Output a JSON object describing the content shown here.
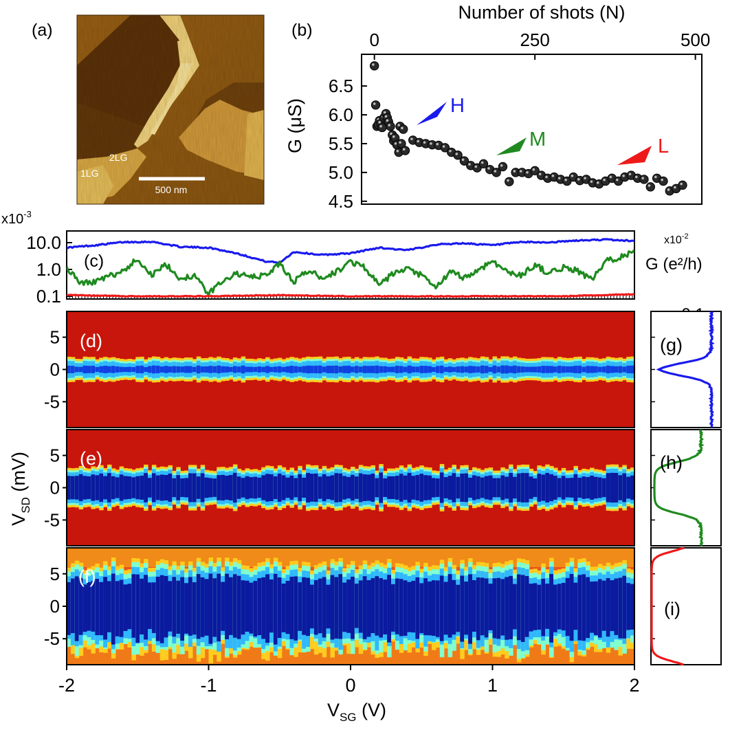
{
  "panel_labels": {
    "a": "(a)",
    "b": "(b)",
    "c": "(c)",
    "d": "(d)",
    "e": "(e)",
    "f": "(f)",
    "g": "(g)",
    "h": "(h)",
    "i": "(i)"
  },
  "afm_image": {
    "label_1lg": "1LG",
    "label_2lg": "2LG",
    "scalebar_label": "500 nm",
    "colors": {
      "dark": "#5a3006",
      "mid": "#a86a18",
      "bright": "#e8c058",
      "highlight": "#fbe59a"
    }
  },
  "colors": {
    "H": "#1a1aee",
    "M": "#1f8a1f",
    "L": "#ee1a1a",
    "points": "#2a2a2a"
  },
  "chart_data": [
    {
      "id": "b",
      "type": "scatter",
      "title": "",
      "xlabel": "Number of shots (N)",
      "ylabel": "G (μS)",
      "xlim": [
        -20,
        510
      ],
      "ylim": [
        4.45,
        7.05
      ],
      "xticks": [
        0,
        250,
        500
      ],
      "yticks": [
        4.5,
        5.0,
        5.5,
        6.0,
        6.5
      ],
      "ytick_labels": [
        "4.5",
        "5.0",
        "5.5",
        "6.0",
        "6.5"
      ],
      "x": [
        0,
        2,
        4,
        6,
        8,
        10,
        12,
        15,
        18,
        20,
        22,
        25,
        28,
        30,
        32,
        35,
        38,
        40,
        42,
        45,
        48,
        60,
        70,
        80,
        90,
        100,
        110,
        120,
        130,
        140,
        150,
        160,
        170,
        180,
        190,
        200,
        210,
        220,
        230,
        240,
        250,
        260,
        270,
        280,
        290,
        300,
        310,
        320,
        330,
        340,
        350,
        360,
        370,
        380,
        390,
        400,
        410,
        420,
        430,
        440,
        450,
        460,
        470,
        480
      ],
      "y": [
        6.85,
        6.17,
        5.8,
        5.83,
        5.9,
        5.85,
        5.78,
        5.95,
        6.02,
        5.95,
        5.88,
        5.8,
        5.65,
        5.55,
        5.6,
        5.48,
        5.35,
        5.8,
        5.5,
        5.75,
        5.38,
        5.56,
        5.52,
        5.5,
        5.48,
        5.47,
        5.43,
        5.35,
        5.3,
        5.2,
        5.12,
        5.08,
        5.15,
        5.05,
        5.0,
        5.1,
        4.84,
        5.0,
        5.0,
        4.98,
        5.03,
        4.95,
        4.9,
        4.92,
        4.88,
        4.85,
        4.92,
        4.86,
        4.88,
        4.82,
        4.8,
        4.85,
        4.9,
        4.85,
        4.92,
        4.95,
        4.9,
        4.88,
        4.75,
        4.9,
        4.85,
        4.68,
        4.72,
        4.78
      ],
      "annotations": [
        {
          "text": "H",
          "x": 90,
          "y": 6.22,
          "color_key": "H"
        },
        {
          "text": "M",
          "x": 495,
          "y": 5.6,
          "color_key": "M"
        },
        {
          "text": "L",
          "x": 880,
          "y": 5.3,
          "color_key": "L"
        }
      ]
    },
    {
      "id": "c",
      "type": "line",
      "title": "",
      "xlabel": "",
      "ylabel": "",
      "scale": "log",
      "exponent_left": "x10",
      "exponent_left_sup": "-3",
      "exponent_right": "x10",
      "exponent_right_sup": "-2",
      "ytick_labels": [
        "10.0",
        "1.0",
        "0.1"
      ],
      "ylabel_right": "G (e²/h)",
      "ylabel_right_tick": "0.1",
      "xlim": [
        -2,
        2
      ],
      "series": [
        {
          "color_key": "H",
          "x": [
            -2.0,
            -1.8,
            -1.6,
            -1.4,
            -1.2,
            -1.0,
            -0.8,
            -0.6,
            -0.5,
            -0.4,
            -0.2,
            0.0,
            0.2,
            0.4,
            0.6,
            0.8,
            1.0,
            1.2,
            1.4,
            1.6,
            1.8,
            2.0
          ],
          "values": [
            6.5,
            8.0,
            10.5,
            10.8,
            7.0,
            6.5,
            4.0,
            2.0,
            1.8,
            4.5,
            3.5,
            4.0,
            6.5,
            5.2,
            8.5,
            9.5,
            8.0,
            10.5,
            10.2,
            12.0,
            13.0,
            11.5
          ]
        },
        {
          "color_key": "M",
          "x": [
            -2.0,
            -1.9,
            -1.8,
            -1.7,
            -1.6,
            -1.5,
            -1.4,
            -1.3,
            -1.2,
            -1.1,
            -1.0,
            -0.9,
            -0.8,
            -0.7,
            -0.6,
            -0.5,
            -0.4,
            -0.3,
            -0.2,
            -0.1,
            0.0,
            0.1,
            0.2,
            0.3,
            0.4,
            0.5,
            0.6,
            0.7,
            0.8,
            0.9,
            1.0,
            1.1,
            1.2,
            1.3,
            1.4,
            1.5,
            1.6,
            1.7,
            1.8,
            1.9,
            2.0
          ],
          "values": [
            1.2,
            0.3,
            0.35,
            0.55,
            0.9,
            2.5,
            0.6,
            1.5,
            0.45,
            0.6,
            0.12,
            0.4,
            0.7,
            0.5,
            0.6,
            1.6,
            0.35,
            0.9,
            0.5,
            0.8,
            2.0,
            1.2,
            0.25,
            0.7,
            1.0,
            0.6,
            0.2,
            0.8,
            0.5,
            0.9,
            2.2,
            0.8,
            0.6,
            1.5,
            0.7,
            1.2,
            0.9,
            0.4,
            2.0,
            3.0,
            4.5
          ]
        },
        {
          "color_key": "L",
          "x": [
            -2.0,
            -1.5,
            -1.0,
            -0.5,
            0.0,
            0.5,
            1.0,
            1.5,
            2.0
          ],
          "values": [
            0.11,
            0.1,
            0.1,
            0.11,
            0.1,
            0.1,
            0.1,
            0.1,
            0.12
          ]
        }
      ]
    },
    {
      "id": "d-f",
      "type": "heatmap",
      "title": "",
      "xlabel": "V_SG (V)",
      "ylabel": "V_SD (mV)",
      "xlim": [
        -2,
        2
      ],
      "ylim": [
        -9,
        9
      ],
      "xticks": [
        -2,
        -1,
        0,
        1,
        2
      ],
      "yticks": [
        5,
        0,
        -5
      ],
      "panels": [
        {
          "id": "d",
          "gap_halfwidth_mV": 0.8
        },
        {
          "id": "e",
          "gap_halfwidth_mV": 2.0
        },
        {
          "id": "f",
          "gap_halfwidth_mV": 4.5
        }
      ]
    },
    {
      "id": "g-i",
      "type": "line",
      "title": "",
      "xlabel": "",
      "ylabel": "",
      "ylim": [
        -9,
        9
      ],
      "series": [
        {
          "color_key": "H",
          "panel": "g",
          "step_halfwidth_mV": 1.0
        },
        {
          "color_key": "M",
          "panel": "h",
          "step_halfwidth_mV": 4.0
        },
        {
          "color_key": "L",
          "panel": "i",
          "step_halfwidth_mV": 8.5
        }
      ]
    }
  ]
}
